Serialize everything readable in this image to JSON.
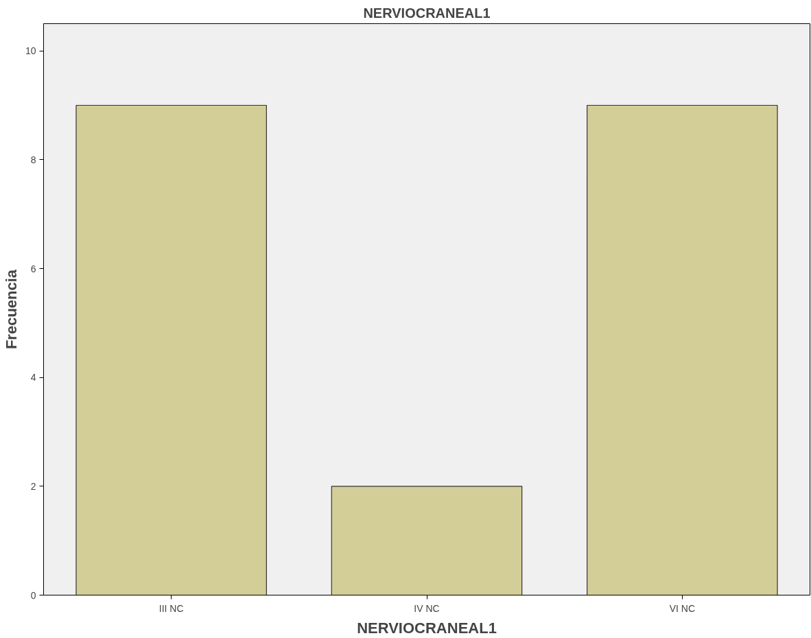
{
  "chart_data": {
    "type": "bar",
    "title": "NERVIOCRANEAL1",
    "xlabel": "NERVIOCRANEAL1",
    "ylabel": "Frecuencia",
    "categories": [
      "III NC",
      "IV NC",
      "VI NC"
    ],
    "values": [
      9,
      2,
      9
    ],
    "color": "#d3ce97",
    "ylim": [
      0,
      10.5
    ],
    "yticks": [
      0,
      2,
      4,
      6,
      8,
      10
    ],
    "grid": false
  }
}
